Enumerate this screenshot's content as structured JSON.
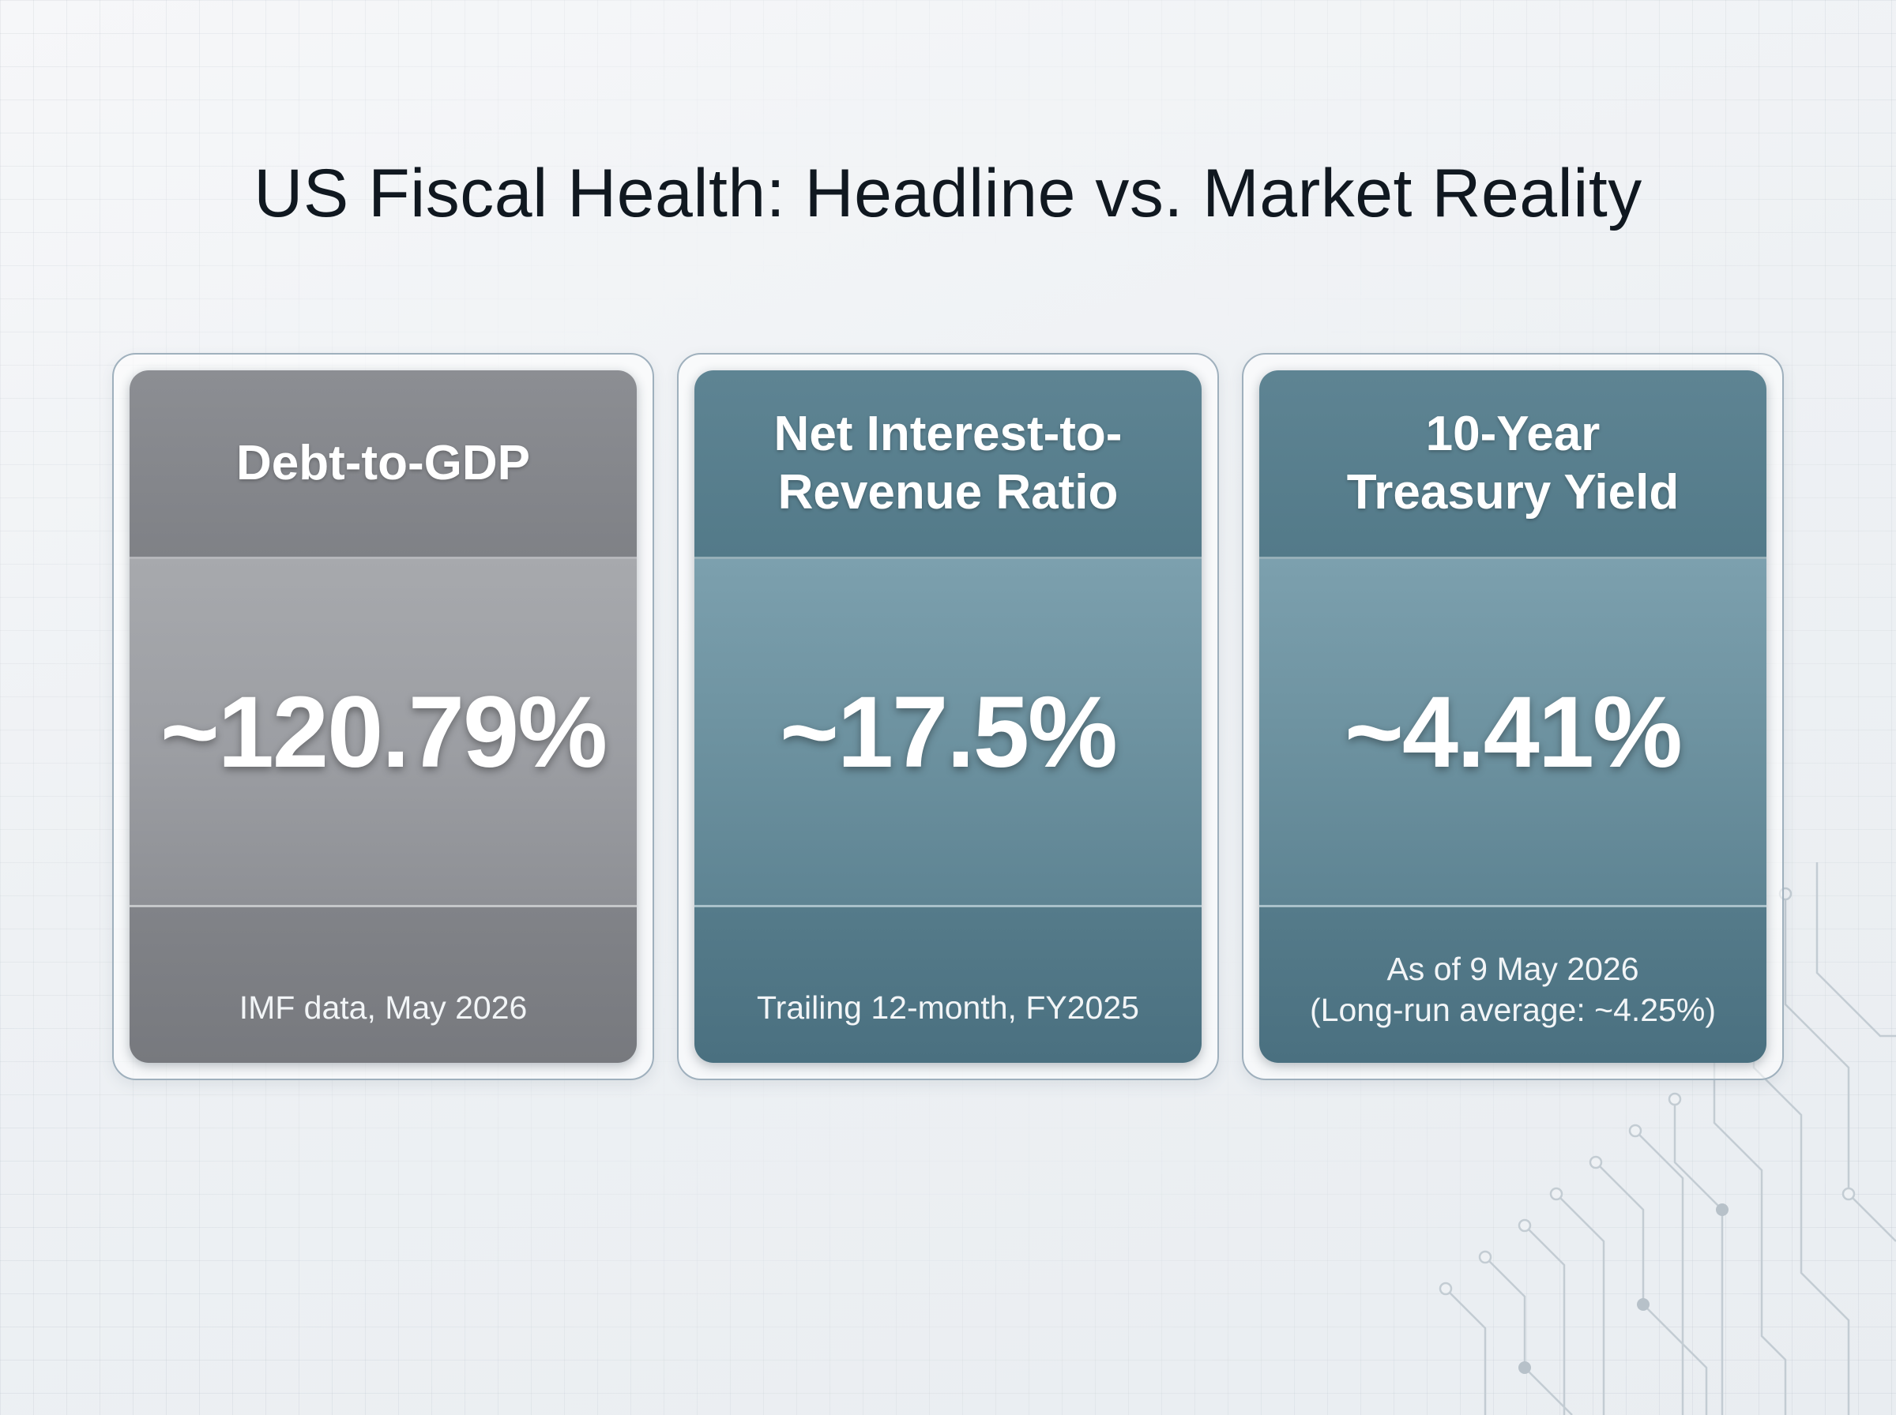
{
  "title": "US Fiscal Health: Headline vs. Market Reality",
  "cards": [
    {
      "title": "Debt-to-GDP",
      "value": "~120.79%",
      "note": "IMF data, May 2026",
      "color": "#8c8e93"
    },
    {
      "title": "Net Interest-to-\nRevenue Ratio",
      "value": "~17.5%",
      "note": "Trailing 12-month, FY2025",
      "color": "#5e8493"
    },
    {
      "title": "10-Year\nTreasury Yield",
      "value": "~4.41%",
      "note": "As of 9 May 2026\n(Long-run average: ~4.25%)",
      "color": "#5e8493"
    }
  ]
}
